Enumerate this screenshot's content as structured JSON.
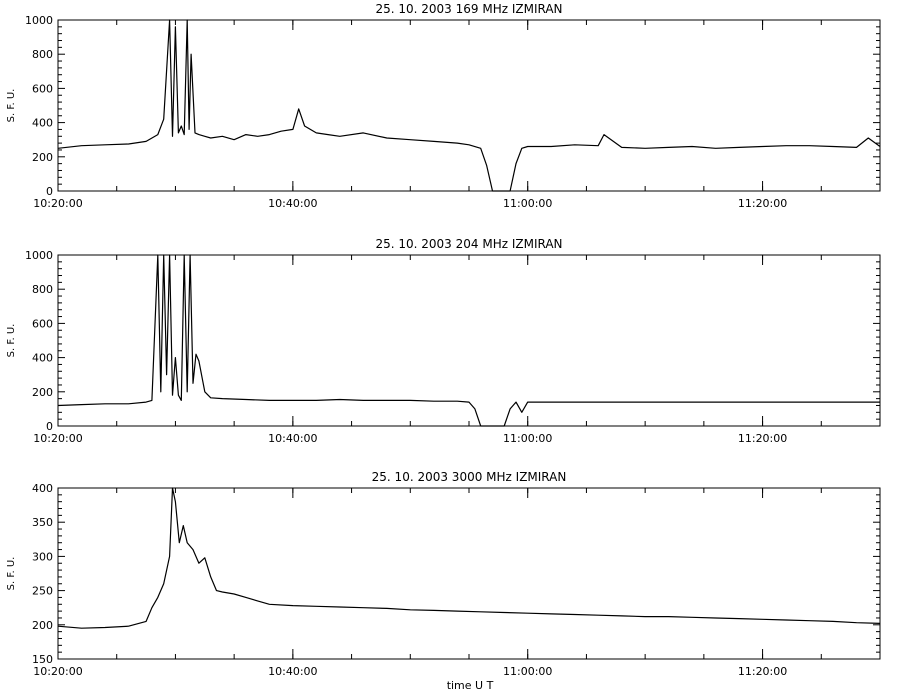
{
  "figure": {
    "x_axis_label": "time  U T"
  },
  "chart_data": [
    {
      "type": "line",
      "title": "25.  10.  2003    169 MHz    IZMIRAN",
      "ylabel": "S. F. U.",
      "xlabel": "",
      "x_unit": "time UT",
      "xlim": [
        "10:20:00",
        "11:30:00"
      ],
      "ylim": [
        0,
        1000
      ],
      "y_ticks": [
        0,
        200,
        400,
        600,
        800,
        1000
      ],
      "x_ticks": [
        "10:20:00",
        "10:40:00",
        "11:00:00",
        "11:20:00"
      ],
      "grid": false,
      "color": "#000000",
      "series": [
        {
          "x": [
            "10:20:00",
            "10:22:00",
            "10:24:00",
            "10:26:00",
            "10:27:30",
            "10:28:30",
            "10:29:00",
            "10:29:30",
            "10:29:45",
            "10:30:00",
            "10:30:15",
            "10:30:30",
            "10:30:45",
            "10:31:00",
            "10:31:10",
            "10:31:20",
            "10:31:40",
            "10:32:00",
            "10:32:30",
            "10:33:00",
            "10:34:00",
            "10:35:00",
            "10:36:00",
            "10:37:00",
            "10:38:00",
            "10:39:00",
            "10:40:00",
            "10:40:30",
            "10:41:00",
            "10:42:00",
            "10:43:00",
            "10:44:00",
            "10:46:00",
            "10:48:00",
            "10:50:00",
            "10:52:00",
            "10:54:00",
            "10:55:00",
            "10:56:00",
            "10:56:30",
            "10:57:00",
            "10:57:30",
            "10:58:30",
            "10:59:00",
            "10:59:30",
            "11:00:00",
            "11:02:00",
            "11:04:00",
            "11:06:00",
            "11:06:30",
            "11:08:00",
            "11:10:00",
            "11:12:00",
            "11:14:00",
            "11:16:00",
            "11:18:00",
            "11:20:00",
            "11:22:00",
            "11:24:00",
            "11:26:00",
            "11:28:00",
            "11:29:00",
            "11:30:00"
          ],
          "y": [
            250,
            265,
            270,
            275,
            290,
            330,
            420,
            1000,
            320,
            960,
            340,
            380,
            330,
            1000,
            360,
            800,
            340,
            330,
            320,
            310,
            320,
            300,
            330,
            320,
            330,
            350,
            360,
            480,
            380,
            340,
            330,
            320,
            340,
            310,
            300,
            290,
            280,
            270,
            250,
            150,
            0,
            0,
            0,
            160,
            250,
            260,
            260,
            270,
            265,
            330,
            255,
            250,
            255,
            260,
            250,
            255,
            260,
            265,
            265,
            260,
            255,
            310,
            260
          ]
        }
      ]
    },
    {
      "type": "line",
      "title": "25.  10.  2003    204 MHz    IZMIRAN",
      "ylabel": "S. F. U.",
      "xlabel": "",
      "x_unit": "time UT",
      "xlim": [
        "10:20:00",
        "11:30:00"
      ],
      "ylim": [
        0,
        1000
      ],
      "y_ticks": [
        0,
        200,
        400,
        600,
        800,
        1000
      ],
      "x_ticks": [
        "10:20:00",
        "10:40:00",
        "11:00:00",
        "11:20:00"
      ],
      "grid": false,
      "color": "#000000",
      "series": [
        {
          "x": [
            "10:20:00",
            "10:22:00",
            "10:24:00",
            "10:26:00",
            "10:27:30",
            "10:28:00",
            "10:28:30",
            "10:28:45",
            "10:29:00",
            "10:29:15",
            "10:29:30",
            "10:29:45",
            "10:30:00",
            "10:30:15",
            "10:30:30",
            "10:30:45",
            "10:31:00",
            "10:31:15",
            "10:31:30",
            "10:31:45",
            "10:32:00",
            "10:32:30",
            "10:33:00",
            "10:34:00",
            "10:36:00",
            "10:38:00",
            "10:40:00",
            "10:42:00",
            "10:44:00",
            "10:46:00",
            "10:48:00",
            "10:50:00",
            "10:52:00",
            "10:54:00",
            "10:55:00",
            "10:55:30",
            "10:56:00",
            "10:57:00",
            "10:58:00",
            "10:58:30",
            "10:59:00",
            "10:59:30",
            "11:00:00",
            "11:02:00",
            "11:04:00",
            "11:06:00",
            "11:08:00",
            "11:10:00",
            "11:12:00",
            "11:14:00",
            "11:16:00",
            "11:18:00",
            "11:20:00",
            "11:22:00",
            "11:24:00",
            "11:26:00",
            "11:28:00",
            "11:30:00"
          ],
          "y": [
            120,
            125,
            130,
            130,
            140,
            150,
            1000,
            200,
            1000,
            300,
            1000,
            180,
            400,
            180,
            150,
            1000,
            200,
            1000,
            250,
            420,
            380,
            200,
            165,
            160,
            155,
            150,
            150,
            150,
            155,
            150,
            150,
            150,
            145,
            145,
            140,
            100,
            0,
            0,
            0,
            100,
            140,
            80,
            140,
            140,
            140,
            140,
            140,
            140,
            140,
            140,
            140,
            140,
            140,
            140,
            140,
            140,
            140,
            140
          ]
        }
      ]
    },
    {
      "type": "line",
      "title": "25.  10.  2003    3000 MHz    IZMIRAN",
      "ylabel": "S. F. U.",
      "xlabel": "time  U T",
      "x_unit": "time UT",
      "xlim": [
        "10:20:00",
        "11:30:00"
      ],
      "ylim": [
        150,
        400
      ],
      "y_ticks": [
        150,
        200,
        250,
        300,
        350,
        400
      ],
      "x_ticks": [
        "10:20:00",
        "10:40:00",
        "11:00:00",
        "11:20:00"
      ],
      "grid": false,
      "color": "#000000",
      "series": [
        {
          "x": [
            "10:20:00",
            "10:22:00",
            "10:24:00",
            "10:26:00",
            "10:27:30",
            "10:28:00",
            "10:28:30",
            "10:29:00",
            "10:29:30",
            "10:29:45",
            "10:30:00",
            "10:30:20",
            "10:30:40",
            "10:31:00",
            "10:31:30",
            "10:32:00",
            "10:32:30",
            "10:33:00",
            "10:33:30",
            "10:34:00",
            "10:35:00",
            "10:36:00",
            "10:37:00",
            "10:38:00",
            "10:40:00",
            "10:42:00",
            "10:44:00",
            "10:46:00",
            "10:48:00",
            "10:50:00",
            "10:52:00",
            "10:54:00",
            "10:56:00",
            "10:58:00",
            "11:00:00",
            "11:02:00",
            "11:04:00",
            "11:06:00",
            "11:08:00",
            "11:10:00",
            "11:12:00",
            "11:14:00",
            "11:16:00",
            "11:18:00",
            "11:20:00",
            "11:22:00",
            "11:24:00",
            "11:26:00",
            "11:28:00",
            "11:30:00"
          ],
          "y": [
            198,
            195,
            196,
            198,
            205,
            225,
            240,
            260,
            300,
            400,
            380,
            320,
            345,
            320,
            310,
            290,
            298,
            270,
            250,
            248,
            245,
            240,
            235,
            230,
            228,
            227,
            226,
            225,
            224,
            222,
            221,
            220,
            219,
            218,
            217,
            216,
            215,
            214,
            213,
            212,
            212,
            211,
            210,
            209,
            208,
            207,
            206,
            205,
            203,
            202
          ]
        }
      ]
    }
  ]
}
